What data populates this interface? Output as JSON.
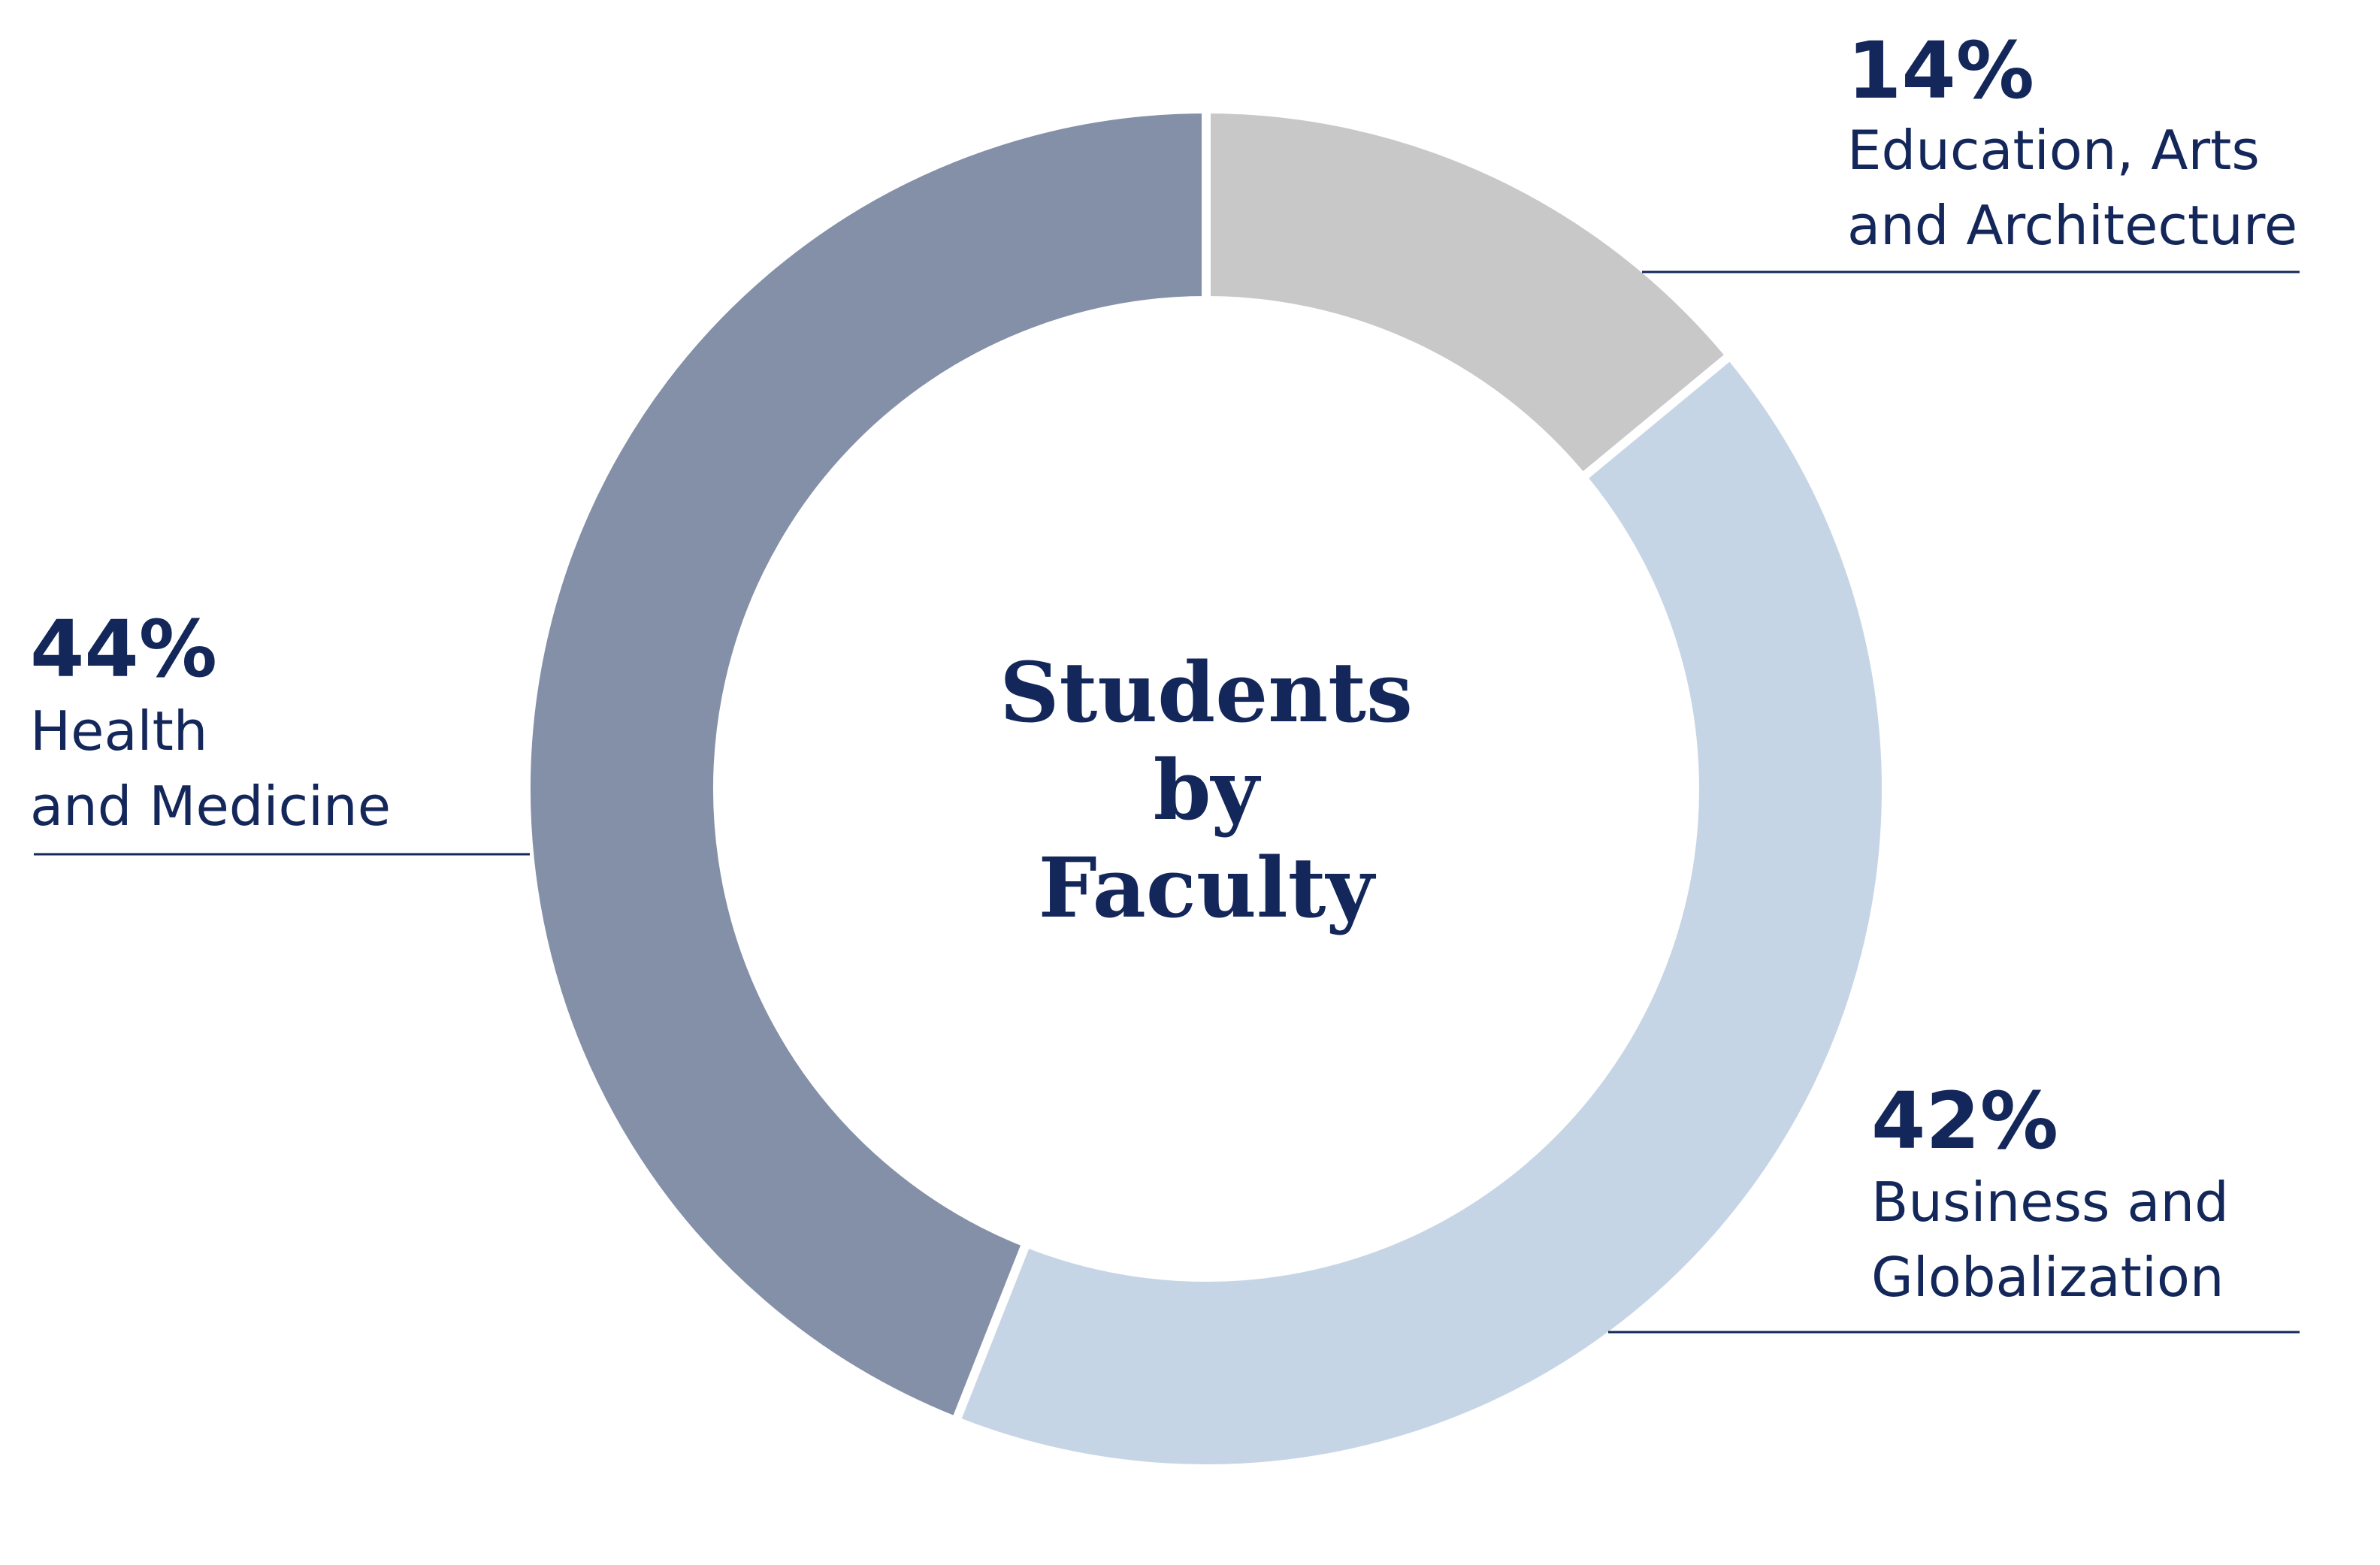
{
  "chart_data": {
    "type": "pie",
    "title_lines": [
      "Students",
      "by",
      "Faculty"
    ],
    "slices": [
      {
        "label_lines": [
          "Education, Arts",
          "and Architecture"
        ],
        "value": 14,
        "value_label": "14%",
        "color": "#c8c8c8"
      },
      {
        "label_lines": [
          "Business and",
          "Globalization"
        ],
        "value": 42,
        "value_label": "42%",
        "color": "#c6d5e5"
      },
      {
        "label_lines": [
          "Health",
          "and Medicine"
        ],
        "value": 44,
        "value_label": "44%",
        "color": "#8390a8"
      }
    ],
    "legend": "none"
  },
  "colors": {
    "text": "#14275a",
    "background": "#ffffff"
  }
}
